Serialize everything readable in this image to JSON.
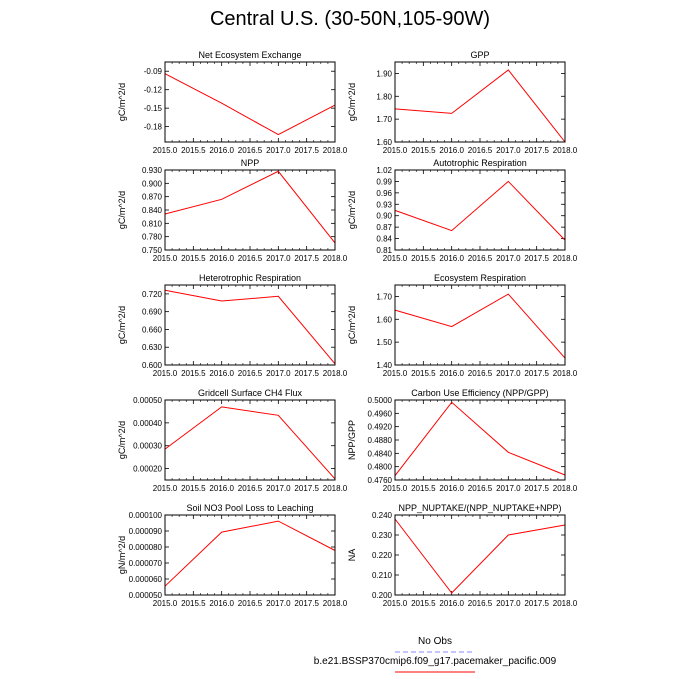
{
  "page": {
    "title": "Central U.S. (30-50N,105-90W)"
  },
  "legend": {
    "items": [
      {
        "label": "No Obs",
        "color": "#8888ff",
        "dash": "dash"
      },
      {
        "label": "b.e21.BSSP370cmip6.f09_g17.pacemaker_pacific.009",
        "color": "#ff0000",
        "dash": "solid"
      }
    ]
  },
  "chart_data": [
    {
      "type": "line",
      "title": "Net Ecosystem Exchange",
      "ylabel": "gC/m^2/d",
      "xlim": [
        2015.0,
        2018.0
      ],
      "ylim": [
        -0.205,
        -0.075
      ],
      "xticks": [
        2015.0,
        2015.5,
        2016.0,
        2016.5,
        2017.0,
        2017.5,
        2018.0
      ],
      "xticklabels": [
        "2015.0",
        "2015.5",
        "2016.0",
        "2016.5",
        "2017.0",
        "2017.5",
        "2018.0"
      ],
      "yticks": [
        -0.18,
        -0.15,
        -0.12,
        -0.09
      ],
      "yticklabels": [
        "-0.18",
        "-0.15",
        "-0.12",
        "-0.09"
      ],
      "series": [
        {
          "color": "#ff0000",
          "x": [
            2015,
            2016,
            2017,
            2018
          ],
          "y": [
            -0.094,
            -0.142,
            -0.193,
            -0.145
          ]
        }
      ]
    },
    {
      "type": "line",
      "title": "GPP",
      "ylabel": "gC/m^2/d",
      "xlim": [
        2015.0,
        2018.0
      ],
      "ylim": [
        1.6,
        1.95
      ],
      "xticks": [
        2015.0,
        2015.5,
        2016.0,
        2016.5,
        2017.0,
        2017.5,
        2018.0
      ],
      "xticklabels": [
        "2015.0",
        "2015.5",
        "2016.0",
        "2016.5",
        "2017.0",
        "2017.5",
        "2018.0"
      ],
      "yticks": [
        1.6,
        1.7,
        1.8,
        1.9
      ],
      "yticklabels": [
        "1.60",
        "1.70",
        "1.80",
        "1.90"
      ],
      "series": [
        {
          "color": "#ff0000",
          "x": [
            2015,
            2016,
            2017,
            2018
          ],
          "y": [
            1.745,
            1.725,
            1.915,
            1.6
          ]
        }
      ]
    },
    {
      "type": "line",
      "title": "NPP",
      "ylabel": "gC/m^2/d",
      "xlim": [
        2015.0,
        2018.0
      ],
      "ylim": [
        0.75,
        0.93
      ],
      "xticks": [
        2015.0,
        2015.5,
        2016.0,
        2016.5,
        2017.0,
        2017.5,
        2018.0
      ],
      "xticklabels": [
        "2015.0",
        "2015.5",
        "2016.0",
        "2016.5",
        "2017.0",
        "2017.5",
        "2018.0"
      ],
      "yticks": [
        0.75,
        0.78,
        0.81,
        0.84,
        0.87,
        0.9,
        0.93
      ],
      "yticklabels": [
        "0.750",
        "0.780",
        "0.810",
        "0.840",
        "0.870",
        "0.900",
        "0.930"
      ],
      "series": [
        {
          "color": "#ff0000",
          "x": [
            2015,
            2016,
            2017,
            2018
          ],
          "y": [
            0.831,
            0.864,
            0.927,
            0.766
          ]
        }
      ]
    },
    {
      "type": "line",
      "title": "Autotrophic Respiration",
      "ylabel": "gC/m^2/d",
      "xlim": [
        2015.0,
        2018.0
      ],
      "ylim": [
        0.81,
        1.02
      ],
      "xticks": [
        2015.0,
        2015.5,
        2016.0,
        2016.5,
        2017.0,
        2017.5,
        2018.0
      ],
      "xticklabels": [
        "2015.0",
        "2015.5",
        "2016.0",
        "2016.5",
        "2017.0",
        "2017.5",
        "2018.0"
      ],
      "yticks": [
        0.81,
        0.84,
        0.87,
        0.9,
        0.93,
        0.96,
        0.99,
        1.02
      ],
      "yticklabels": [
        "0.81",
        "0.84",
        "0.87",
        "0.90",
        "0.93",
        "0.96",
        "0.99",
        "1.02"
      ],
      "series": [
        {
          "color": "#ff0000",
          "x": [
            2015,
            2016,
            2017,
            2018
          ],
          "y": [
            0.914,
            0.861,
            0.99,
            0.836
          ]
        }
      ]
    },
    {
      "type": "line",
      "title": "Heterotrophic Respiration",
      "ylabel": "gC/m^2/d",
      "xlim": [
        2015.0,
        2018.0
      ],
      "ylim": [
        0.6,
        0.735
      ],
      "xticks": [
        2015.0,
        2015.5,
        2016.0,
        2016.5,
        2017.0,
        2017.5,
        2018.0
      ],
      "xticklabels": [
        "2015.0",
        "2015.5",
        "2016.0",
        "2016.5",
        "2017.0",
        "2017.5",
        "2018.0"
      ],
      "yticks": [
        0.6,
        0.63,
        0.66,
        0.69,
        0.72
      ],
      "yticklabels": [
        "0.600",
        "0.630",
        "0.660",
        "0.690",
        "0.720"
      ],
      "series": [
        {
          "color": "#ff0000",
          "x": [
            2015,
            2016,
            2017,
            2018
          ],
          "y": [
            0.726,
            0.708,
            0.716,
            0.602
          ]
        }
      ]
    },
    {
      "type": "line",
      "title": "Ecosystem Respiration",
      "ylabel": "gC/m^2/d",
      "xlim": [
        2015.0,
        2018.0
      ],
      "ylim": [
        1.4,
        1.75
      ],
      "xticks": [
        2015.0,
        2015.5,
        2016.0,
        2016.5,
        2017.0,
        2017.5,
        2018.0
      ],
      "xticklabels": [
        "2015.0",
        "2015.5",
        "2016.0",
        "2016.5",
        "2017.0",
        "2017.5",
        "2018.0"
      ],
      "yticks": [
        1.4,
        1.5,
        1.6,
        1.7
      ],
      "yticklabels": [
        "1.40",
        "1.50",
        "1.60",
        "1.70"
      ],
      "series": [
        {
          "color": "#ff0000",
          "x": [
            2015,
            2016,
            2017,
            2018
          ],
          "y": [
            1.64,
            1.568,
            1.71,
            1.43
          ]
        }
      ]
    },
    {
      "type": "line",
      "title": "Gridcell Surface CH4 Flux",
      "ylabel": "gC/m^2/d",
      "xlim": [
        2015.0,
        2018.0
      ],
      "ylim": [
        0.00015,
        0.0005
      ],
      "xticks": [
        2015.0,
        2015.5,
        2016.0,
        2016.5,
        2017.0,
        2017.5,
        2018.0
      ],
      "xticklabels": [
        "2015.0",
        "2015.5",
        "2016.0",
        "2016.5",
        "2017.0",
        "2017.5",
        "2018.0"
      ],
      "yticks": [
        0.0002,
        0.0003,
        0.0004,
        0.0005
      ],
      "yticklabels": [
        "0.00020",
        "0.00030",
        "0.00040",
        "0.00050"
      ],
      "series": [
        {
          "color": "#ff0000",
          "x": [
            2015,
            2016,
            2017,
            2018
          ],
          "y": [
            0.000285,
            0.00047,
            0.000433,
            0.000155
          ]
        }
      ]
    },
    {
      "type": "line",
      "title": "Carbon Use Efficiency (NPP/GPP)",
      "ylabel": "NPP/GPP",
      "xlim": [
        2015.0,
        2018.0
      ],
      "ylim": [
        0.476,
        0.5
      ],
      "xticks": [
        2015.0,
        2015.5,
        2016.0,
        2016.5,
        2017.0,
        2017.5,
        2018.0
      ],
      "xticklabels": [
        "2015.0",
        "2015.5",
        "2016.0",
        "2016.5",
        "2017.0",
        "2017.5",
        "2018.0"
      ],
      "yticks": [
        0.476,
        0.48,
        0.484,
        0.488,
        0.492,
        0.496,
        0.5
      ],
      "yticklabels": [
        "0.4760",
        "0.4800",
        "0.4840",
        "0.4880",
        "0.4920",
        "0.4960",
        "0.5000"
      ],
      "series": [
        {
          "color": "#ff0000",
          "x": [
            2015,
            2016,
            2017,
            2018
          ],
          "y": [
            0.4773,
            0.4993,
            0.4843,
            0.4775
          ]
        }
      ]
    },
    {
      "type": "line",
      "title": "Soil NO3 Pool Loss to Leaching",
      "ylabel": "gN/m^2/d",
      "xlim": [
        2015.0,
        2018.0
      ],
      "ylim": [
        5e-05,
        0.0001
      ],
      "xticks": [
        2015.0,
        2015.5,
        2016.0,
        2016.5,
        2017.0,
        2017.5,
        2018.0
      ],
      "xticklabels": [
        "2015.0",
        "2015.5",
        "2016.0",
        "2016.5",
        "2017.0",
        "2017.5",
        "2018.0"
      ],
      "yticks": [
        5e-05,
        6e-05,
        7e-05,
        8e-05,
        9e-05,
        0.0001
      ],
      "yticklabels": [
        "0.000050",
        "0.000060",
        "0.000070",
        "0.000080",
        "0.000090",
        "0.000100"
      ],
      "series": [
        {
          "color": "#ff0000",
          "x": [
            2015,
            2016,
            2017,
            2018
          ],
          "y": [
            5.55e-05,
            8.93e-05,
            9.62e-05,
            7.78e-05
          ]
        }
      ]
    },
    {
      "type": "line",
      "title": "NPP_NUPTAKE/(NPP_NUPTAKE+NPP)",
      "ylabel": "NA",
      "xlim": [
        2015.0,
        2018.0
      ],
      "ylim": [
        0.2,
        0.24
      ],
      "xticks": [
        2015.0,
        2015.5,
        2016.0,
        2016.5,
        2017.0,
        2017.5,
        2018.0
      ],
      "xticklabels": [
        "2015.0",
        "2015.5",
        "2016.0",
        "2016.5",
        "2017.0",
        "2017.5",
        "2018.0"
      ],
      "yticks": [
        0.2,
        0.21,
        0.22,
        0.23,
        0.24
      ],
      "yticklabels": [
        "0.200",
        "0.210",
        "0.220",
        "0.230",
        "0.240"
      ],
      "series": [
        {
          "color": "#ff0000",
          "x": [
            2015,
            2016,
            2017,
            2018
          ],
          "y": [
            0.238,
            0.201,
            0.23,
            0.235
          ]
        }
      ]
    }
  ]
}
